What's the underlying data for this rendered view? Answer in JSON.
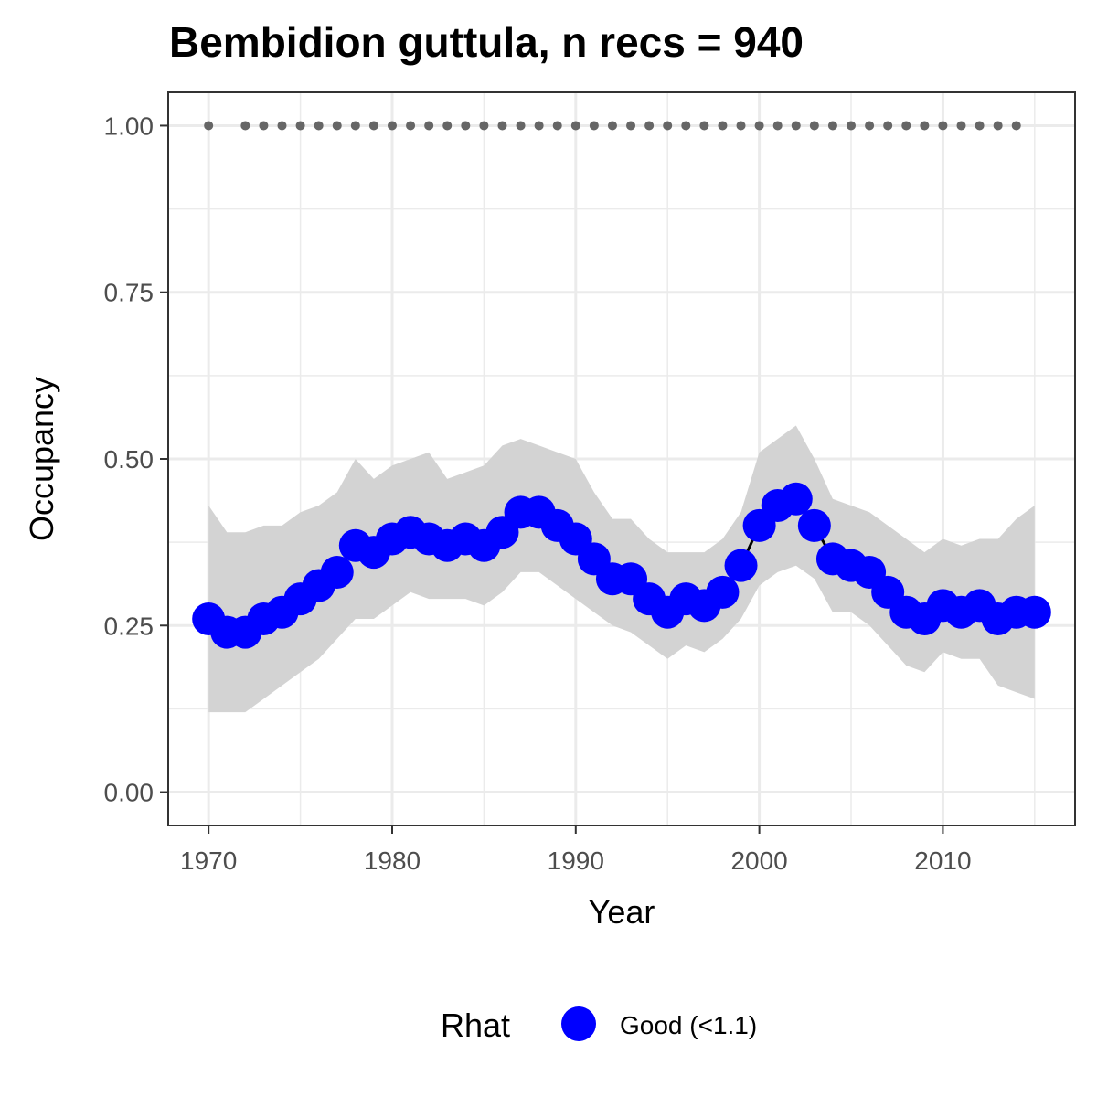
{
  "chart_data": {
    "type": "line",
    "title": "Bembidion guttula, n recs = 940",
    "xlabel": "Year",
    "ylabel": "Occupancy",
    "xlim": [
      1967.8,
      2017.2
    ],
    "ylim": [
      -0.05,
      1.05
    ],
    "x_ticks": [
      1970,
      1980,
      1990,
      2000,
      2010
    ],
    "x_tick_labels": [
      "1970",
      "1980",
      "1990",
      "2000",
      "2010"
    ],
    "y_ticks": [
      0,
      0.25,
      0.5,
      0.75,
      1
    ],
    "y_tick_labels": [
      "0.00",
      "0.25",
      "0.50",
      "0.75",
      "1.00"
    ],
    "grid": true,
    "series": [
      {
        "kind": "mean_with_ci",
        "x": [
          1970,
          1971,
          1972,
          1973,
          1974,
          1975,
          1976,
          1977,
          1978,
          1979,
          1980,
          1981,
          1982,
          1983,
          1984,
          1985,
          1986,
          1987,
          1988,
          1989,
          1990,
          1991,
          1992,
          1993,
          1994,
          1995,
          1996,
          1997,
          1998,
          1999,
          2000,
          2001,
          2002,
          2003,
          2004,
          2005,
          2006,
          2007,
          2008,
          2009,
          2010,
          2011,
          2012,
          2013,
          2014,
          2015
        ],
        "y": [
          0.26,
          0.24,
          0.24,
          0.26,
          0.27,
          0.29,
          0.31,
          0.33,
          0.37,
          0.36,
          0.38,
          0.39,
          0.38,
          0.37,
          0.38,
          0.37,
          0.39,
          0.42,
          0.42,
          0.4,
          0.38,
          0.35,
          0.32,
          0.32,
          0.29,
          0.27,
          0.29,
          0.28,
          0.3,
          0.34,
          0.4,
          0.43,
          0.44,
          0.4,
          0.35,
          0.34,
          0.33,
          0.3,
          0.27,
          0.26,
          0.28,
          0.27,
          0.28,
          0.26,
          0.27,
          0.27
        ],
        "lower": [
          0.12,
          0.12,
          0.12,
          0.14,
          0.16,
          0.18,
          0.2,
          0.23,
          0.26,
          0.26,
          0.28,
          0.3,
          0.29,
          0.29,
          0.29,
          0.28,
          0.3,
          0.33,
          0.33,
          0.31,
          0.29,
          0.27,
          0.25,
          0.24,
          0.22,
          0.2,
          0.22,
          0.21,
          0.23,
          0.26,
          0.31,
          0.33,
          0.34,
          0.32,
          0.27,
          0.27,
          0.25,
          0.22,
          0.19,
          0.18,
          0.21,
          0.2,
          0.2,
          0.16,
          0.15,
          0.14
        ],
        "upper": [
          0.43,
          0.39,
          0.39,
          0.4,
          0.4,
          0.42,
          0.43,
          0.45,
          0.5,
          0.47,
          0.49,
          0.5,
          0.51,
          0.47,
          0.48,
          0.49,
          0.52,
          0.53,
          0.52,
          0.51,
          0.5,
          0.45,
          0.41,
          0.41,
          0.38,
          0.36,
          0.36,
          0.36,
          0.38,
          0.42,
          0.51,
          0.53,
          0.55,
          0.5,
          0.44,
          0.43,
          0.42,
          0.4,
          0.38,
          0.36,
          0.38,
          0.37,
          0.38,
          0.38,
          0.41,
          0.43
        ],
        "point_color": "#0000ff",
        "line_color": "#000000",
        "band_color": "#d3d3d3"
      },
      {
        "kind": "record_years",
        "x": [
          1970,
          1972,
          1973,
          1974,
          1975,
          1976,
          1977,
          1978,
          1979,
          1980,
          1981,
          1982,
          1983,
          1984,
          1985,
          1986,
          1987,
          1988,
          1989,
          1990,
          1991,
          1992,
          1993,
          1994,
          1995,
          1996,
          1997,
          1998,
          1999,
          2000,
          2001,
          2002,
          2003,
          2004,
          2005,
          2006,
          2007,
          2008,
          2009,
          2010,
          2011,
          2012,
          2013,
          2014
        ],
        "y_value": 1.0,
        "color": "#666666"
      }
    ],
    "legend": {
      "title": "Rhat",
      "position": "bottom",
      "items": [
        {
          "label": "Good (<1.1)",
          "color": "#0000ff"
        }
      ]
    }
  }
}
